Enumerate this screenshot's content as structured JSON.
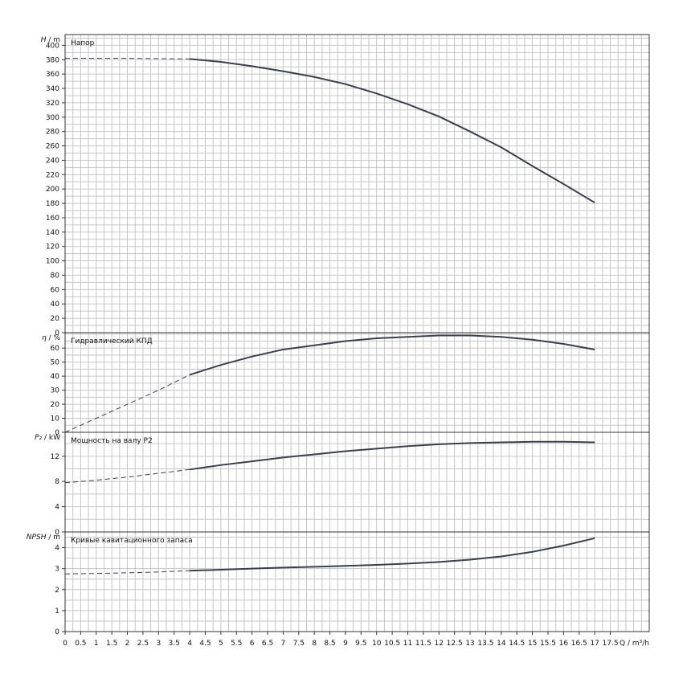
{
  "colors": {
    "grid": "#c6c6c6",
    "frame": "#333333",
    "curve": "#3a3f4b",
    "text": "#111111"
  },
  "x_axis": {
    "label": "Q / m³/h",
    "ticks": [
      "0",
      "0.5",
      "1",
      "1.5",
      "2",
      "2.5",
      "3",
      "3.5",
      "4",
      "4.5",
      "5",
      "5.5",
      "6",
      "6.5",
      "7",
      "7.5",
      "8",
      "8.5",
      "9",
      "9.5",
      "10",
      "10.5",
      "11",
      "11.5",
      "12",
      "12.5",
      "13",
      "13.5",
      "14",
      "14.5",
      "15",
      "15.5",
      "16",
      "16.5",
      "17",
      "17.5"
    ]
  },
  "chart_data": [
    {
      "type": "line",
      "title": "Напор",
      "ylabel_symbol": "H",
      "ylabel_unit": "/ m",
      "xlim": [
        0,
        18.75
      ],
      "ylim": [
        0,
        415
      ],
      "yticks": [
        0,
        20,
        40,
        60,
        80,
        100,
        120,
        140,
        160,
        180,
        200,
        220,
        240,
        260,
        280,
        300,
        320,
        340,
        360,
        380,
        400
      ],
      "dashed": {
        "x": [
          0,
          2,
          4
        ],
        "y": [
          382,
          382,
          381
        ]
      },
      "series": [
        {
          "x": [
            4,
            5,
            6,
            7,
            8,
            9,
            10,
            11,
            12,
            13,
            14,
            15,
            16,
            17
          ],
          "y": [
            381,
            377,
            371,
            364,
            356,
            346,
            333,
            318,
            301,
            280,
            258,
            232,
            207,
            181
          ]
        }
      ]
    },
    {
      "type": "line",
      "title": "Гидравлический КПД",
      "ylabel_symbol": "η",
      "ylabel_unit": "/ %",
      "xlim": [
        0,
        18.75
      ],
      "ylim": [
        0,
        71
      ],
      "yticks": [
        0,
        10,
        20,
        30,
        40,
        50,
        60
      ],
      "dashed": {
        "x": [
          0,
          1,
          2,
          3,
          4
        ],
        "y": [
          0,
          10,
          20,
          30,
          41
        ]
      },
      "series": [
        {
          "x": [
            4,
            5,
            6,
            7,
            8,
            9,
            10,
            11,
            12,
            13,
            14,
            15,
            16,
            17
          ],
          "y": [
            41,
            48,
            54,
            59,
            62,
            65,
            67,
            68,
            69,
            69,
            68,
            66,
            63,
            59
          ]
        }
      ]
    },
    {
      "type": "line",
      "title": "Мощность на валу P2",
      "ylabel_symbol": "P₂",
      "ylabel_unit": "/ kW",
      "xlim": [
        0,
        18.75
      ],
      "ylim": [
        0,
        15.8
      ],
      "yticks": [
        0,
        4,
        8,
        12
      ],
      "dashed": {
        "x": [
          0,
          1,
          2,
          3,
          4
        ],
        "y": [
          7.8,
          8.2,
          8.7,
          9.3,
          9.9
        ]
      },
      "series": [
        {
          "x": [
            4,
            5,
            6,
            7,
            8,
            9,
            10,
            11,
            12,
            13,
            14,
            15,
            16,
            17
          ],
          "y": [
            9.9,
            10.6,
            11.2,
            11.8,
            12.3,
            12.8,
            13.2,
            13.6,
            13.9,
            14.1,
            14.2,
            14.3,
            14.3,
            14.2
          ]
        }
      ]
    },
    {
      "type": "line",
      "title": "Кривые кавитационного запаса",
      "ylabel_symbol": "NPSH",
      "ylabel_unit": "/ m",
      "xlim": [
        0,
        18.75
      ],
      "ylim": [
        0,
        4.75
      ],
      "yticks": [
        0,
        1,
        2,
        3,
        4
      ],
      "dashed": {
        "x": [
          0,
          1,
          2,
          3,
          4
        ],
        "y": [
          2.75,
          2.77,
          2.8,
          2.84,
          2.9
        ]
      },
      "series": [
        {
          "x": [
            4,
            5,
            6,
            7,
            8,
            9,
            10,
            11,
            12,
            13,
            14,
            15,
            16,
            17
          ],
          "y": [
            2.9,
            2.95,
            3.0,
            3.05,
            3.09,
            3.13,
            3.18,
            3.24,
            3.32,
            3.43,
            3.58,
            3.8,
            4.1,
            4.45
          ]
        }
      ]
    }
  ]
}
